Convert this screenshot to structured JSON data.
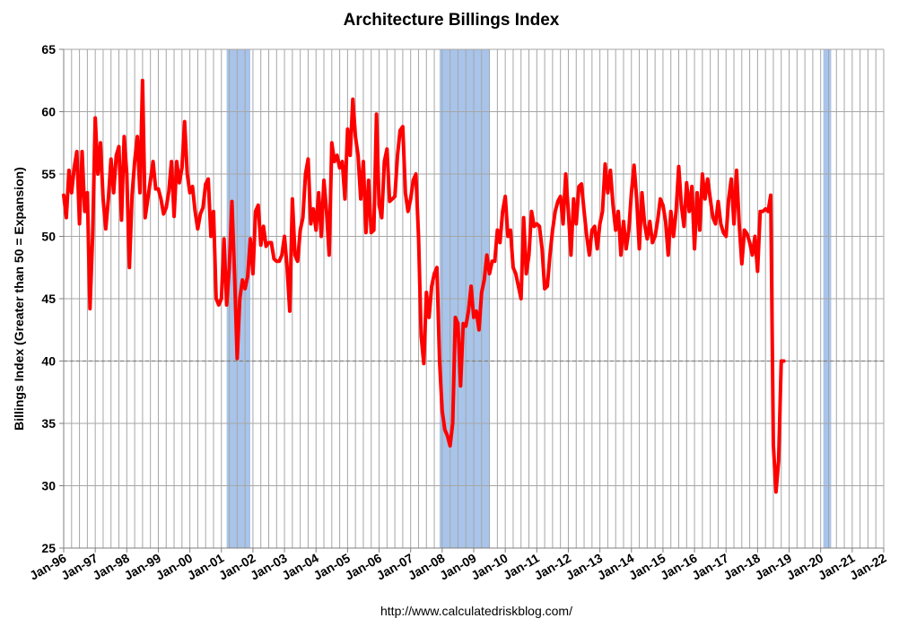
{
  "chart_data": {
    "type": "line",
    "title": "Architecture Billings Index",
    "ylabel": "Billings Index (Greater than 50 = Expansion)",
    "source": "http://www.calculatedriskblog.com/",
    "ylim": [
      25,
      65
    ],
    "yticks": [
      25,
      30,
      35,
      40,
      45,
      50,
      55,
      60,
      65
    ],
    "xlim": [
      "1996-01",
      "2022-01"
    ],
    "xtick_labels": [
      "Jan-96",
      "Jan-97",
      "Jan-98",
      "Jan-99",
      "Jan-00",
      "Jan-01",
      "Jan-02",
      "Jan-03",
      "Jan-04",
      "Jan-05",
      "Jan-06",
      "Jan-07",
      "Jan-08",
      "Jan-09",
      "Jan-10",
      "Jan-11",
      "Jan-12",
      "Jan-13",
      "Jan-14",
      "Jan-15",
      "Jan-16",
      "Jan-17",
      "Jan-18",
      "Jan-19",
      "Jan-20",
      "Jan-21",
      "Jan-22"
    ],
    "grid": true,
    "reference_line": 40,
    "recessions": [
      {
        "start": "2001-03",
        "end": "2001-11"
      },
      {
        "start": "2007-12",
        "end": "2009-06"
      },
      {
        "start": "2020-02",
        "end": "2020-04"
      }
    ],
    "colors": {
      "line": "#ff0000",
      "recession": "#a8c4ea",
      "grid": "#a6a6a6",
      "reference": "#808080"
    },
    "series": [
      {
        "start": "1996-01",
        "values": [
          53.3,
          51.5,
          55.3,
          53.5,
          55.5,
          56.8,
          51.0,
          56.8,
          52.0,
          53.5,
          44.2,
          50.0,
          59.5,
          55.0,
          57.5,
          53.0,
          50.6,
          53.0,
          56.2,
          53.5,
          56.5,
          57.2,
          51.3,
          58.0,
          55.0,
          47.5,
          53.3,
          56.0,
          58.0,
          53.5,
          62.5,
          51.5,
          53.0,
          54.5,
          56.0,
          53.8,
          53.8,
          53.0,
          51.8,
          52.3,
          53.6,
          56.0,
          51.6,
          56.0,
          54.3,
          55.5,
          59.2,
          55.0,
          53.5,
          54.0,
          52.0,
          50.6,
          51.8,
          52.3,
          54.2,
          54.6,
          50.0,
          52.0,
          45.0,
          44.5,
          45.0,
          49.8,
          44.5,
          47.5,
          52.8,
          47.0,
          40.2,
          45.0,
          46.5,
          45.8,
          46.8,
          49.8,
          47.0,
          52.0,
          52.5,
          49.3,
          50.8,
          49.2,
          49.5,
          49.5,
          48.2,
          48.0,
          48.0,
          48.5,
          50.0,
          47.5,
          44.0,
          53.0,
          48.5,
          48.0,
          50.5,
          51.5,
          55.0,
          56.2,
          51.0,
          52.2,
          50.5,
          53.5,
          50.0,
          54.5,
          52.0,
          48.5,
          57.5,
          56.0,
          56.5,
          55.5,
          56.0,
          53.0,
          58.6,
          56.5,
          61.0,
          58.0,
          56.5,
          53.0,
          56.0,
          50.3,
          54.5,
          50.3,
          50.5,
          59.8,
          52.5,
          51.5,
          56.0,
          57.0,
          52.8,
          53.0,
          53.2,
          56.5,
          58.5,
          58.8,
          53.5,
          52.0,
          53.0,
          54.5,
          55.0,
          50.0,
          42.0,
          39.8,
          45.5,
          43.5,
          46.0,
          47.0,
          47.5,
          40.0,
          36.0,
          34.5,
          34.0,
          33.2,
          35.0,
          43.5,
          43.0,
          38.0,
          43.0,
          42.8,
          44.0,
          46.0,
          43.5,
          44.0,
          42.5,
          45.5,
          46.5,
          48.5,
          47.0,
          48.0,
          48.0,
          50.5,
          49.5,
          52.0,
          53.2,
          50.0,
          50.5,
          47.5,
          47.0,
          46.0,
          45.0,
          51.5,
          47.0,
          48.5,
          52.0,
          50.8,
          51.0,
          50.8,
          49.0,
          45.8,
          46.0,
          48.5,
          50.5,
          52.0,
          52.8,
          53.2,
          51.0,
          55.0,
          52.0,
          48.5,
          53.0,
          51.0,
          54.0,
          54.2,
          52.0,
          50.0,
          48.5,
          50.5,
          50.8,
          49.0,
          51.0,
          52.0,
          55.8,
          53.5,
          55.3,
          52.5,
          50.5,
          52.0,
          48.5,
          51.2,
          49.0,
          50.5,
          53.5,
          55.7,
          53.0,
          49.0,
          53.5,
          51.0,
          49.8,
          51.2,
          49.5,
          50.0,
          51.3,
          53.0,
          52.5,
          51.2,
          48.5,
          52.0,
          50.0,
          52.0,
          55.6,
          52.5,
          50.8,
          54.3,
          52.0,
          54.0,
          49.0,
          53.5,
          50.5,
          55.0,
          53.0,
          54.6,
          53.0,
          51.5,
          51.0,
          52.8,
          51.0,
          50.3,
          50.0,
          53.0,
          54.6,
          51.0,
          55.3,
          51.0,
          47.8,
          50.5,
          50.2,
          49.5,
          48.5,
          50.0,
          47.2,
          52.0,
          52.0,
          52.2,
          52.0,
          53.3,
          33.3,
          29.5,
          32.0,
          40.0,
          40.0
        ]
      }
    ]
  }
}
